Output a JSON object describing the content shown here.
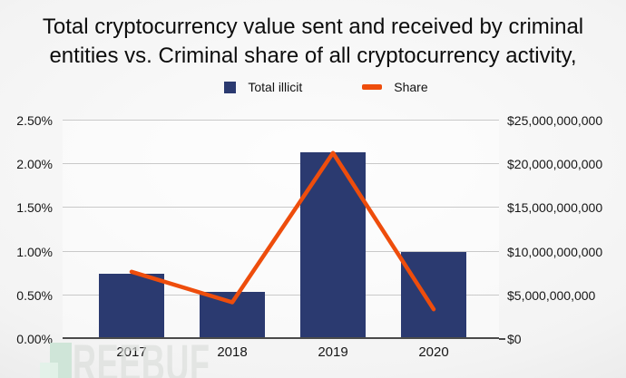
{
  "title": {
    "line1": "Total cryptocurrency value sent and received by criminal",
    "line2": "entities vs. Criminal share of all cryptocurrency activity,"
  },
  "chart_data": {
    "type": "bar",
    "subtype": "combo bar+line, dual y-axis",
    "categories": [
      "2017",
      "2018",
      "2019",
      "2020"
    ],
    "series": [
      {
        "name": "Total illicit",
        "type": "bar",
        "axis": "right",
        "unit": "USD",
        "values": [
          7500000000,
          5400000000,
          21400000000,
          10000000000
        ],
        "color": "#2b3a70"
      },
      {
        "name": "Share",
        "type": "line",
        "axis": "left",
        "unit": "percent",
        "values": [
          0.77,
          0.42,
          2.13,
          0.34
        ],
        "color": "#ee4d0c"
      }
    ],
    "left_axis": {
      "min": 0,
      "max": 2.5,
      "ticks": [
        "0.00%",
        "0.50%",
        "1.00%",
        "1.50%",
        "2.00%",
        "2.50%"
      ]
    },
    "right_axis": {
      "min": 0,
      "max": 25000000000,
      "ticks": [
        "$0",
        "$5,000,000,000",
        "$10,000,000,000",
        "$15,000,000,000",
        "$20,000,000,000",
        "$25,000,000,000"
      ]
    },
    "grid": true,
    "legend_position": "top-center"
  },
  "colors": {
    "bar": "#2b3a70",
    "line": "#ee4d0c",
    "gridline": "#c9c9c9",
    "axis_line": "#4b4b4b",
    "title_text": "#0d0d0d",
    "tick_text": "#161616",
    "watermark_green": "#cbe3d5"
  },
  "watermark": {
    "text": "REEBUF"
  }
}
